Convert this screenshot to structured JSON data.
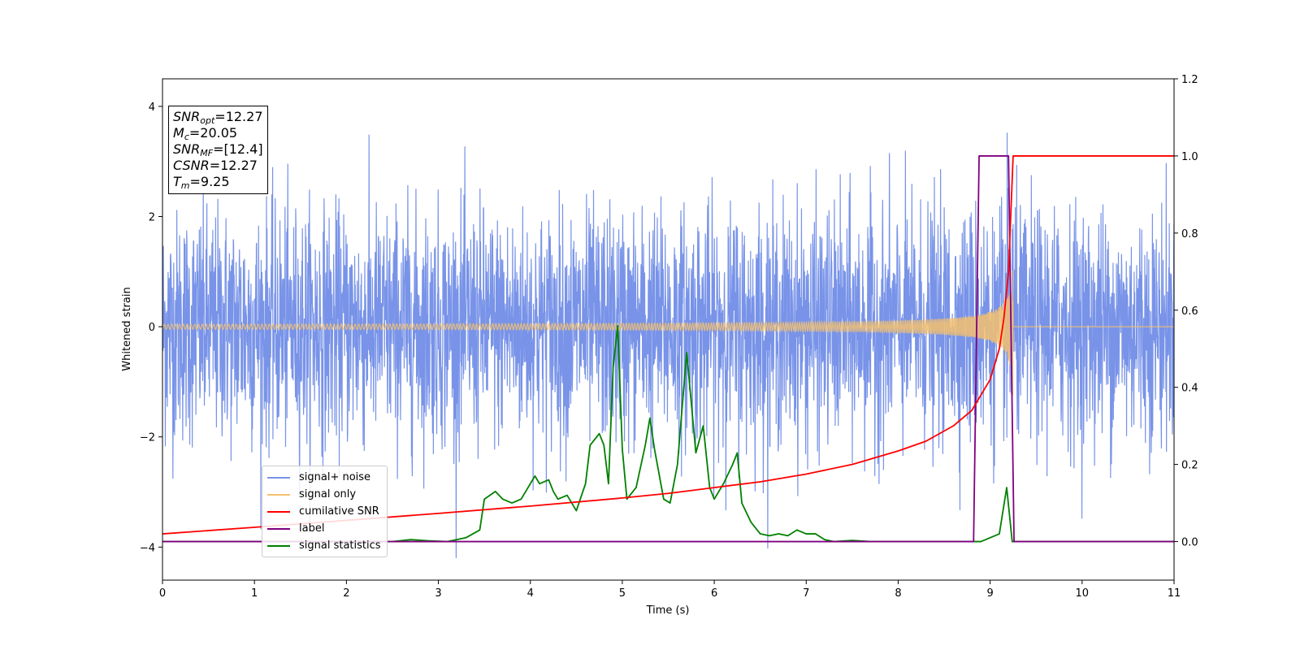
{
  "chart_data": {
    "type": "line",
    "xlabel": "Time (s)",
    "ylabel": "Whitened strain",
    "xlim": [
      0,
      11
    ],
    "ylim_left": [
      -4.6,
      4.5
    ],
    "ylim_right": [
      -0.1,
      1.2
    ],
    "x_ticks": [
      "0",
      "1",
      "2",
      "3",
      "4",
      "5",
      "6",
      "7",
      "8",
      "9",
      "10",
      "11"
    ],
    "y_ticks_left": [
      "−4",
      "−2",
      "0",
      "2",
      "4"
    ],
    "y_ticks_right": [
      "0.0",
      "0.2",
      "0.4",
      "0.6",
      "0.8",
      "1.0",
      "1.2"
    ],
    "annotation": {
      "snr_opt": "=12.27",
      "mc": "=20.05",
      "snr_mf": "=[12.4]",
      "csnr": "=12.27",
      "tm": "=9.25"
    },
    "legend": [
      "signal+ noise",
      "signal only",
      "cumilative SNR",
      "label",
      "signal statistics"
    ],
    "colors": {
      "signal_noise": "#7893e8",
      "signal_only": "#f5c16e",
      "cumulative_snr": "#ff0000",
      "label": "#800080",
      "signal_statistics": "#008000"
    },
    "series": [
      {
        "name": "signal+ noise",
        "axis": "left",
        "description_type": "noise",
        "amplitude_std": 1.0,
        "x_range": [
          0,
          11
        ]
      },
      {
        "name": "signal only",
        "axis": "left",
        "description_type": "chirp",
        "merger_time": 9.25,
        "peak_amplitude": 1.4,
        "x_range": [
          0,
          11
        ]
      },
      {
        "name": "cumilative SNR",
        "axis": "right",
        "x": [
          0,
          1,
          2,
          3,
          4,
          5,
          5.5,
          6,
          6.5,
          7,
          7.5,
          8,
          8.3,
          8.6,
          8.8,
          9.0,
          9.1,
          9.15,
          9.2,
          9.25,
          11
        ],
        "y": [
          0.02,
          0.037,
          0.055,
          0.073,
          0.092,
          0.113,
          0.125,
          0.14,
          0.155,
          0.175,
          0.2,
          0.235,
          0.26,
          0.3,
          0.34,
          0.42,
          0.5,
          0.58,
          0.7,
          1.0,
          1.0
        ]
      },
      {
        "name": "label",
        "axis": "right",
        "x": [
          0,
          8.82,
          8.88,
          9.2,
          9.26,
          11
        ],
        "y": [
          0.0,
          0.0,
          1.0,
          1.0,
          0.0,
          0.0
        ]
      },
      {
        "name": "signal statistics",
        "axis": "right",
        "x": [
          0,
          0.5,
          1,
          1.5,
          2,
          2.5,
          2.7,
          2.9,
          3.1,
          3.3,
          3.45,
          3.5,
          3.62,
          3.7,
          3.8,
          3.9,
          4.0,
          4.05,
          4.1,
          4.2,
          4.25,
          4.3,
          4.4,
          4.5,
          4.6,
          4.65,
          4.75,
          4.8,
          4.85,
          4.9,
          4.95,
          5.0,
          5.05,
          5.15,
          5.25,
          5.3,
          5.35,
          5.45,
          5.52,
          5.6,
          5.7,
          5.8,
          5.88,
          5.95,
          6.0,
          6.1,
          6.2,
          6.25,
          6.3,
          6.4,
          6.5,
          6.6,
          6.7,
          6.8,
          6.9,
          7.0,
          7.1,
          7.2,
          7.3,
          7.5,
          7.7,
          8.0,
          8.5,
          8.9,
          9.0,
          9.1,
          9.18,
          9.24,
          9.3,
          11
        ],
        "y": [
          0.0,
          0.0,
          0.0,
          0.0,
          0.0,
          0.0,
          0.005,
          0.002,
          0.0,
          0.01,
          0.03,
          0.11,
          0.13,
          0.11,
          0.1,
          0.11,
          0.15,
          0.17,
          0.15,
          0.16,
          0.13,
          0.11,
          0.12,
          0.08,
          0.15,
          0.25,
          0.28,
          0.25,
          0.15,
          0.45,
          0.56,
          0.24,
          0.11,
          0.14,
          0.25,
          0.32,
          0.24,
          0.11,
          0.1,
          0.2,
          0.49,
          0.23,
          0.3,
          0.14,
          0.11,
          0.15,
          0.2,
          0.23,
          0.1,
          0.05,
          0.02,
          0.015,
          0.02,
          0.015,
          0.03,
          0.02,
          0.02,
          0.005,
          0.0,
          0.003,
          0.0,
          0.0,
          0.0,
          0.0,
          0.01,
          0.02,
          0.14,
          0.0,
          0.0,
          0.0
        ]
      }
    ]
  }
}
